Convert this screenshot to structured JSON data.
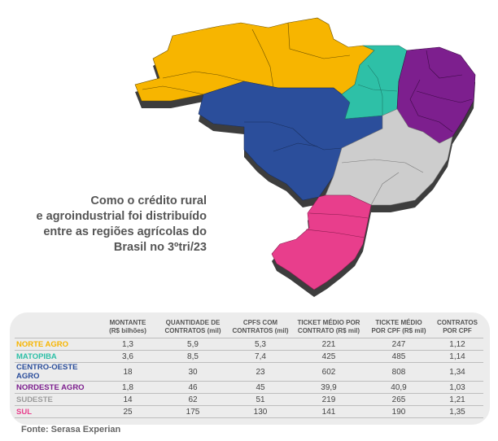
{
  "headline": [
    "Como o crédito rural",
    "e agroindustrial foi distribuído",
    "entre as regiões agrícolas do",
    "Brasil no 3ºtri/23"
  ],
  "table": {
    "headers": [
      [
        "",
        ""
      ],
      [
        "MONTANTE",
        "(R$ bilhões)"
      ],
      [
        "QUANTIDADE DE",
        "CONTRATOS (mil)"
      ],
      [
        "CPFS COM",
        "CONTRATOS (mil)"
      ],
      [
        "TICKET MÉDIO POR",
        "CONTRATO (R$ mil)"
      ],
      [
        "TICKTE MÉDIO",
        "POR CPF (R$ mil)"
      ],
      [
        "CONTRATOS",
        "POR CPF"
      ]
    ],
    "rows": [
      {
        "region": "NORTE AGRO",
        "color": "#F7B500",
        "values": [
          "1,3",
          "5,9",
          "5,3",
          "221",
          "247",
          "1,12"
        ]
      },
      {
        "region": "MATOPIBA",
        "color": "#2EC0A7",
        "values": [
          "3,6",
          "8,5",
          "7,4",
          "425",
          "485",
          "1,14"
        ]
      },
      {
        "region": "CENTRO-OESTE AGRO",
        "color": "#2B4E9B",
        "values": [
          "18",
          "30",
          "23",
          "602",
          "808",
          "1,34"
        ]
      },
      {
        "region": "NORDESTE AGRO",
        "color": "#7D1F8E",
        "values": [
          "1,8",
          "46",
          "45",
          "39,9",
          "40,9",
          "1,03"
        ]
      },
      {
        "region": "SUDESTE",
        "color": "#9C9C9C",
        "values": [
          "14",
          "62",
          "51",
          "219",
          "265",
          "1,21"
        ]
      },
      {
        "region": "SUL",
        "color": "#E83E8C",
        "values": [
          "25",
          "175",
          "130",
          "141",
          "190",
          "1,35"
        ]
      }
    ]
  },
  "source": "Fonte: Serasa Experian"
}
